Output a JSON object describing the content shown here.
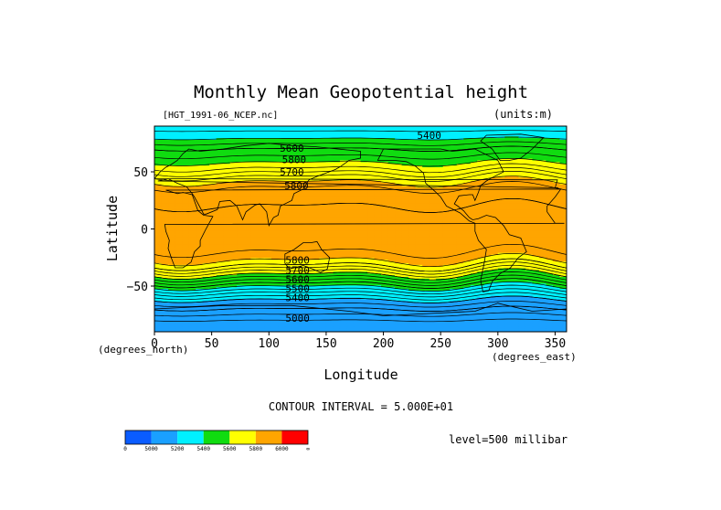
{
  "chart_data": {
    "type": "heatmap",
    "title": "Monthly Mean Geopotential height",
    "source_label": "[HGT_1991-06_NCEP.nc]",
    "units_label": "(units:m)",
    "xlabel": "Longitude",
    "ylabel": "Latitude",
    "x_unit_label": "(degrees_east)",
    "y_unit_label": "(degrees_north)",
    "xlim": [
      0,
      360
    ],
    "ylim": [
      -90,
      90
    ],
    "x_ticks": [
      0,
      50,
      100,
      150,
      200,
      250,
      300,
      350
    ],
    "y_ticks": [
      50,
      0,
      -50
    ],
    "contour_interval_text": "CONTOUR INTERVAL = 5.000E+01",
    "level_text": "level=500 millibar",
    "contour_labels": [
      {
        "text": "5400",
        "lon": 240,
        "lat": 82
      },
      {
        "text": "5600",
        "lon": 120,
        "lat": 71
      },
      {
        "text": "5800",
        "lon": 122,
        "lat": 61
      },
      {
        "text": "5700",
        "lon": 120,
        "lat": 50
      },
      {
        "text": "5800",
        "lon": 124,
        "lat": 38
      },
      {
        "text": "5800",
        "lon": 125,
        "lat": -27
      },
      {
        "text": "5700",
        "lon": 125,
        "lat": -36
      },
      {
        "text": "5600",
        "lon": 125,
        "lat": -44
      },
      {
        "text": "5500",
        "lon": 125,
        "lat": -52
      },
      {
        "text": "5400",
        "lon": 125,
        "lat": -60
      },
      {
        "text": "5000",
        "lon": 125,
        "lat": -78
      }
    ],
    "zonal_profile_m": [
      {
        "lat": 90,
        "value": 5320
      },
      {
        "lat": 80,
        "value": 5390
      },
      {
        "lat": 70,
        "value": 5500
      },
      {
        "lat": 60,
        "value": 5580
      },
      {
        "lat": 52,
        "value": 5660
      },
      {
        "lat": 45,
        "value": 5760
      },
      {
        "lat": 35,
        "value": 5860
      },
      {
        "lat": 20,
        "value": 5900
      },
      {
        "lat": 0,
        "value": 5880
      },
      {
        "lat": -15,
        "value": 5870
      },
      {
        "lat": -25,
        "value": 5830
      },
      {
        "lat": -32,
        "value": 5750
      },
      {
        "lat": -40,
        "value": 5600
      },
      {
        "lat": -48,
        "value": 5450
      },
      {
        "lat": -55,
        "value": 5320
      },
      {
        "lat": -62,
        "value": 5200
      },
      {
        "lat": -70,
        "value": 5100
      },
      {
        "lat": -80,
        "value": 5000
      },
      {
        "lat": -90,
        "value": 5000
      }
    ],
    "colorbar": {
      "bins": [
        {
          "from": 0,
          "to": 5000,
          "color": "#0a5cff"
        },
        {
          "from": 5000,
          "to": 5200,
          "color": "#1aa0ff"
        },
        {
          "from": 5200,
          "to": 5400,
          "color": "#00f0ff"
        },
        {
          "from": 5400,
          "to": 5600,
          "color": "#10dc10"
        },
        {
          "from": 5600,
          "to": 5800,
          "color": "#ffff00"
        },
        {
          "from": 5800,
          "to": 6000,
          "color": "#ffa500"
        },
        {
          "from": 6000,
          "to": "∞",
          "color": "#ff0000"
        }
      ],
      "labels": [
        "0",
        "5000",
        "5200",
        "5400",
        "5600",
        "5800",
        "6000",
        "∞"
      ]
    },
    "grid": false,
    "legend": "bottom-left"
  }
}
